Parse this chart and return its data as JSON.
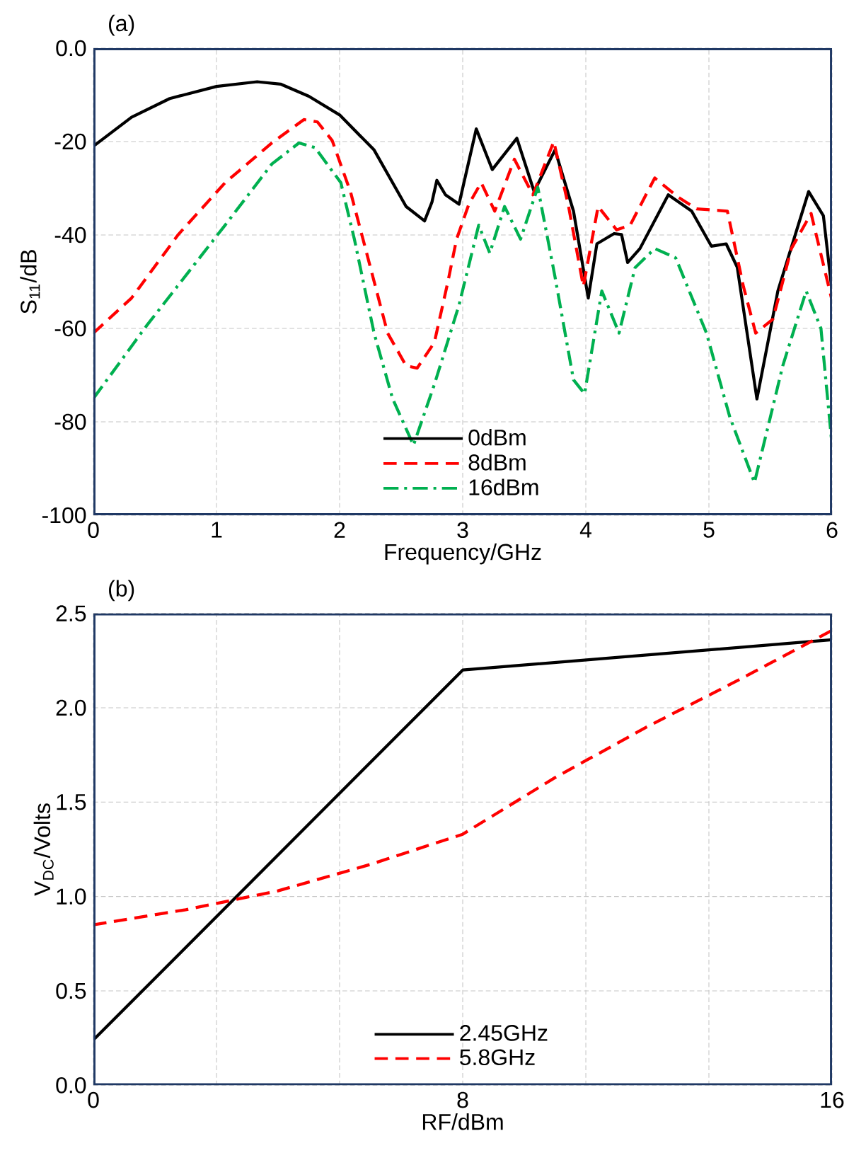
{
  "chart_data": [
    {
      "type": "line",
      "title": "(a)",
      "xlabel": "Frequency/GHz",
      "ylabel": "S$_{11}$/dB",
      "xlim": [
        0,
        6
      ],
      "ylim": [
        -100,
        0
      ],
      "xticks": [
        0,
        1,
        2,
        3,
        4,
        5,
        6
      ],
      "yticks": [
        {
          "value": 0,
          "label": "0.0"
        },
        -20,
        -40,
        -60,
        -80,
        -100
      ],
      "grid": true,
      "legend": "bottom",
      "marker": "none",
      "series": [
        {
          "name": "0dBm",
          "color": "#000000",
          "line_style": "solid",
          "x": [
            0,
            0.31,
            0.62,
            1.0,
            1.33,
            1.52,
            1.75,
            2.0,
            2.28,
            2.54,
            2.69,
            2.75,
            2.79,
            2.86,
            2.97,
            3.11,
            3.24,
            3.44,
            3.58,
            3.75,
            3.9,
            4.02,
            4.09,
            4.23,
            4.29,
            4.34,
            4.44,
            4.67,
            4.86,
            5.02,
            5.14,
            5.23,
            5.39,
            5.56,
            5.81,
            5.93,
            6.0
          ],
          "values": [
            -21,
            -14.8,
            -10.8,
            -8.2,
            -7.2,
            -7.7,
            -10.3,
            -14.3,
            -21.8,
            -33.9,
            -37,
            -33,
            -28.3,
            -31.4,
            -33.4,
            -17.3,
            -26,
            -19.3,
            -30.7,
            -21.8,
            -34.9,
            -53.5,
            -41.9,
            -39.7,
            -39.9,
            -45.9,
            -42.9,
            -31.4,
            -34.9,
            -42.4,
            -41.9,
            -46.9,
            -75.1,
            -52,
            -30.7,
            -35.9,
            -52
          ]
        },
        {
          "name": "8dBm",
          "color": "#ff0000",
          "line_style": "dashed",
          "x": [
            0,
            0.31,
            0.69,
            1.07,
            1.45,
            1.71,
            1.82,
            1.94,
            2.09,
            2.24,
            2.39,
            2.54,
            2.63,
            2.77,
            2.88,
            2.95,
            3.05,
            3.15,
            3.26,
            3.42,
            3.57,
            3.74,
            3.86,
            3.98,
            4.1,
            4.25,
            4.36,
            4.56,
            4.75,
            4.9,
            5.15,
            5.28,
            5.38,
            5.52,
            5.67,
            5.83,
            6.0
          ],
          "values": [
            -61,
            -53.5,
            -39.9,
            -28.8,
            -20.3,
            -15.3,
            -15.8,
            -19.8,
            -30.9,
            -45.9,
            -61,
            -68,
            -68.5,
            -63,
            -50,
            -40.9,
            -33.4,
            -28.8,
            -34.9,
            -23.8,
            -31.4,
            -20,
            -33.9,
            -51,
            -33.9,
            -38.9,
            -37.9,
            -27.8,
            -31.9,
            -34.4,
            -34.9,
            -51,
            -61,
            -58,
            -42.9,
            -35.4,
            -54
          ]
        },
        {
          "name": "16dBm",
          "color": "#00b050",
          "line_style": "dashdot",
          "x": [
            0,
            0.43,
            1.07,
            1.45,
            1.67,
            1.8,
            2.01,
            2.12,
            2.28,
            2.43,
            2.6,
            2.77,
            2.97,
            3.13,
            3.22,
            3.34,
            3.47,
            3.61,
            3.75,
            3.9,
            3.99,
            4.13,
            4.27,
            4.4,
            4.56,
            4.73,
            4.98,
            5.17,
            5.37,
            5.6,
            5.79,
            5.91,
            6.0
          ],
          "values": [
            -75,
            -59.5,
            -37.9,
            -24.8,
            -20.3,
            -21.3,
            -28.8,
            -40.9,
            -61,
            -75,
            -85,
            -72,
            -55,
            -37.9,
            -43.9,
            -33.9,
            -40.9,
            -29.8,
            -49,
            -71,
            -74,
            -52,
            -61,
            -47,
            -42.9,
            -44.9,
            -61,
            -79,
            -93,
            -68,
            -52,
            -60,
            -85
          ]
        }
      ]
    },
    {
      "type": "line",
      "title": "(b)",
      "xlabel": "RF/dBm",
      "ylabel": "V$_{DC}$/Volts",
      "xlim": [
        0,
        16
      ],
      "ylim": [
        0,
        2.5
      ],
      "xticks": [
        0,
        {
          "value": 2.667,
          "label": null
        },
        {
          "value": 5.333,
          "label": null
        },
        8,
        {
          "value": 10.667,
          "label": null
        },
        {
          "value": 13.333,
          "label": null
        },
        16
      ],
      "yticks": [
        {
          "value": 0,
          "label": "0.0"
        },
        0.5,
        {
          "value": 1,
          "label": "1.0"
        },
        1.5,
        {
          "value": 2,
          "label": "2.0"
        },
        2.5
      ],
      "grid": true,
      "legend": "bottom",
      "marker": "none",
      "series": [
        {
          "name": "2.45GHz",
          "color": "#000000",
          "line_style": "solid",
          "x": [
            0,
            8,
            16
          ],
          "values": [
            0.24,
            2.2,
            2.36
          ]
        },
        {
          "name": "5.8GHz",
          "color": "#ff0000",
          "line_style": "dashed",
          "x": [
            0,
            2,
            4,
            6,
            8,
            10,
            12,
            14,
            16
          ],
          "values": [
            0.85,
            0.93,
            1.03,
            1.17,
            1.33,
            1.63,
            1.9,
            2.15,
            2.41
          ]
        }
      ]
    }
  ]
}
